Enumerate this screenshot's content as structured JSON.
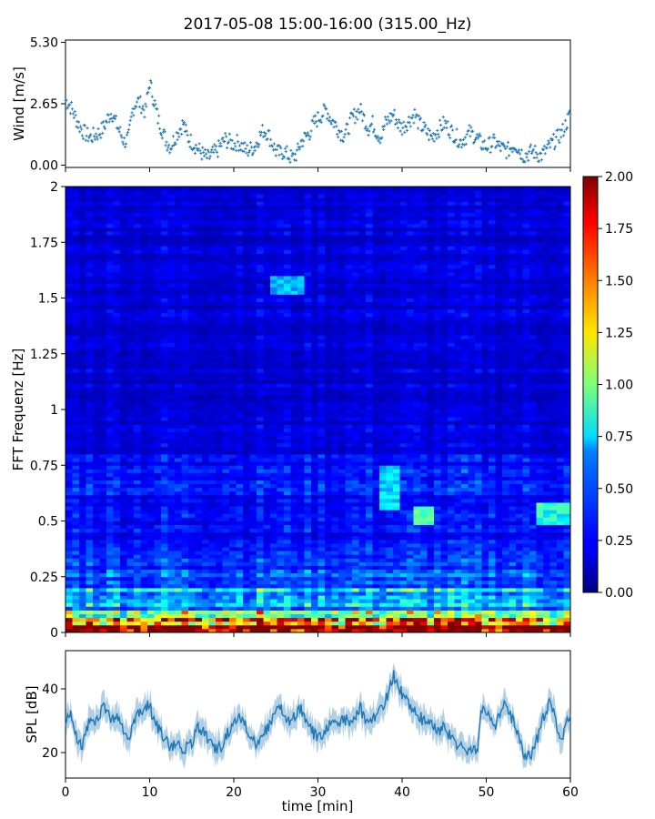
{
  "figure": {
    "title": "2017-05-08 15:00-16:00 (315.00_Hz)"
  },
  "colors": {
    "wind_series": "#1f77b4",
    "spl_series": "#1f77b4",
    "axis": "#000000",
    "background": "#ffffff"
  },
  "chart_data": [
    {
      "type": "scatter",
      "panel": "wind",
      "ylabel": "Wind [m/s]",
      "xlim": [
        0,
        60
      ],
      "ylim": [
        -0.1,
        5.4
      ],
      "yticks": [
        0.0,
        2.65,
        5.3
      ],
      "ytick_labels": [
        "0.00",
        "2.65",
        "5.30"
      ],
      "xticks": [
        0,
        10,
        20,
        30,
        40,
        50,
        60
      ],
      "show_xtick_labels": false,
      "grid": false,
      "marker": "+",
      "x": [
        0,
        0.5,
        1,
        1.5,
        2,
        2.5,
        3,
        3.5,
        4,
        4.5,
        5,
        5.5,
        6,
        6.5,
        7,
        7.5,
        8,
        8.5,
        9,
        9.5,
        10,
        10.5,
        11,
        11.5,
        12,
        12.5,
        13,
        13.5,
        14,
        14.5,
        15,
        15.5,
        16,
        16.5,
        17,
        17.5,
        18,
        18.5,
        19,
        19.5,
        20,
        20.5,
        21,
        21.5,
        22,
        22.5,
        23,
        23.5,
        24,
        24.5,
        25,
        25.5,
        26,
        26.5,
        27,
        27.5,
        28,
        28.5,
        29,
        29.5,
        30,
        30.5,
        31,
        31.5,
        32,
        32.5,
        33,
        33.5,
        34,
        34.5,
        35,
        35.5,
        36,
        36.5,
        37,
        37.5,
        38,
        38.5,
        39,
        39.5,
        40,
        40.5,
        41,
        41.5,
        42,
        42.5,
        43,
        43.5,
        44,
        44.5,
        45,
        45.5,
        46,
        46.5,
        47,
        47.5,
        48,
        48.5,
        49,
        49.5,
        50,
        50.5,
        51,
        51.5,
        52,
        52.5,
        53,
        53.5,
        54,
        54.5,
        55,
        55.5,
        56,
        56.5,
        57,
        57.5,
        58,
        58.5,
        59,
        59.5,
        60
      ],
      "y": [
        2.8,
        2.6,
        2.2,
        1.8,
        1.5,
        1.3,
        1.2,
        1.3,
        1.4,
        1.6,
        2.0,
        2.3,
        1.8,
        1.4,
        1.0,
        1.2,
        2.4,
        2.8,
        2.6,
        2.3,
        3.6,
        2.8,
        2.0,
        1.5,
        1.0,
        0.8,
        1.2,
        1.5,
        1.8,
        1.2,
        1.0,
        0.8,
        0.6,
        0.4,
        0.3,
        0.5,
        0.6,
        0.9,
        1.1,
        1.0,
        0.9,
        1.0,
        0.8,
        0.6,
        0.7,
        0.8,
        1.2,
        1.5,
        1.4,
        1.0,
        0.6,
        0.5,
        0.6,
        0.4,
        0.3,
        0.5,
        1.0,
        1.2,
        1.4,
        1.8,
        2.0,
        2.2,
        2.4,
        2.0,
        1.8,
        1.5,
        1.3,
        1.5,
        2.0,
        2.2,
        2.4,
        2.0,
        1.6,
        1.8,
        1.4,
        1.2,
        1.8,
        2.0,
        2.2,
        1.8,
        1.6,
        1.8,
        2.0,
        2.2,
        1.8,
        1.6,
        1.4,
        1.2,
        1.4,
        1.6,
        1.8,
        1.6,
        1.4,
        1.2,
        1.0,
        1.2,
        1.4,
        1.3,
        1.1,
        0.9,
        0.8,
        0.9,
        1.0,
        0.8,
        0.7,
        0.6,
        0.8,
        0.9,
        0.6,
        0.4,
        0.5,
        0.6,
        0.5,
        0.4,
        0.6,
        0.8,
        1.0,
        1.2,
        1.4,
        1.8,
        2.2
      ]
    },
    {
      "type": "heatmap",
      "panel": "spectrogram",
      "ylabel": "FFT Frequenz [Hz]",
      "xlim": [
        0,
        60
      ],
      "ylim": [
        0,
        2
      ],
      "yticks": [
        0,
        0.25,
        0.5,
        0.75,
        1,
        1.25,
        1.5,
        1.75,
        2
      ],
      "ytick_labels": [
        "0",
        "0.25",
        "0.5",
        "0.75",
        "1",
        "1.25",
        "1.5",
        "1.75",
        "2"
      ],
      "show_xtick_labels": false,
      "colormap": "jet",
      "clim": [
        0,
        2
      ],
      "colorbar_ticks": [
        "0.00",
        "0.25",
        "0.50",
        "0.75",
        "1.00",
        "1.25",
        "1.50",
        "1.75",
        "2.00"
      ],
      "freq_levels": [
        {
          "f_max": 0.03,
          "level": 1.9
        },
        {
          "f_max": 0.06,
          "level": 1.4
        },
        {
          "f_max": 0.1,
          "level": 0.95
        },
        {
          "f_max": 0.2,
          "level": 0.6
        },
        {
          "f_max": 0.4,
          "level": 0.38
        },
        {
          "f_max": 0.8,
          "level": 0.28
        },
        {
          "f_max": 2.0,
          "level": 0.18
        }
      ],
      "hotspots": [
        {
          "t": [
            24,
            28
          ],
          "f": [
            1.52,
            1.6
          ],
          "level": 0.65
        },
        {
          "t": [
            37,
            40
          ],
          "f": [
            0.55,
            0.75
          ],
          "level": 0.7
        },
        {
          "t": [
            41,
            44
          ],
          "f": [
            0.48,
            0.56
          ],
          "level": 0.9
        },
        {
          "t": [
            56,
            60
          ],
          "f": [
            0.48,
            0.58
          ],
          "level": 0.85
        }
      ]
    },
    {
      "type": "line",
      "panel": "spl",
      "ylabel": "SPL [dB]",
      "xlabel": "time [min]",
      "xlim": [
        0,
        60
      ],
      "ylim": [
        12,
        52
      ],
      "yticks": [
        20,
        40
      ],
      "ytick_labels": [
        "20",
        "40"
      ],
      "xticks": [
        0,
        10,
        20,
        30,
        40,
        50,
        60
      ],
      "xtick_labels": [
        "0",
        "10",
        "20",
        "30",
        "40",
        "50",
        "60"
      ],
      "grid": false,
      "x": [
        0,
        0.5,
        1,
        1.5,
        2,
        2.5,
        3,
        3.5,
        4,
        4.5,
        5,
        5.5,
        6,
        6.5,
        7,
        7.5,
        8,
        8.5,
        9,
        9.5,
        10,
        10.5,
        11,
        11.5,
        12,
        12.5,
        13,
        13.5,
        14,
        14.5,
        15,
        15.5,
        16,
        16.5,
        17,
        17.5,
        18,
        18.5,
        19,
        19.5,
        20,
        20.5,
        21,
        21.5,
        22,
        22.5,
        23,
        23.5,
        24,
        24.5,
        25,
        25.5,
        26,
        26.5,
        27,
        27.5,
        28,
        28.5,
        29,
        29.5,
        30,
        30.5,
        31,
        31.5,
        32,
        32.5,
        33,
        33.5,
        34,
        34.5,
        35,
        35.5,
        36,
        36.5,
        37,
        37.5,
        38,
        38.5,
        39,
        39.5,
        40,
        40.5,
        41,
        41.5,
        42,
        42.5,
        43,
        43.5,
        44,
        44.5,
        45,
        45.5,
        46,
        46.5,
        47,
        47.5,
        48,
        48.5,
        49,
        49.5,
        50,
        50.5,
        51,
        51.5,
        52,
        52.5,
        53,
        53.5,
        54,
        54.5,
        55,
        55.5,
        56,
        56.5,
        57,
        57.5,
        58,
        58.5,
        59,
        59.5,
        60
      ],
      "y": [
        30,
        33,
        27,
        24,
        22,
        28,
        30,
        28,
        32,
        34,
        33,
        30,
        32,
        30,
        26,
        23,
        30,
        31,
        33,
        34,
        35,
        30,
        28,
        26,
        24,
        22,
        22,
        24,
        20,
        22,
        23,
        27,
        28,
        26,
        24,
        22,
        21,
        22,
        25,
        27,
        30,
        32,
        31,
        28,
        25,
        23,
        24,
        26,
        28,
        30,
        32,
        34,
        32,
        30,
        30,
        33,
        34,
        31,
        28,
        26,
        24,
        25,
        27,
        29,
        30,
        28,
        31,
        30,
        28,
        32,
        34,
        31,
        28,
        30,
        32,
        34,
        36,
        40,
        44,
        42,
        38,
        36,
        35,
        33,
        32,
        30,
        28,
        30,
        28,
        26,
        28,
        26,
        24,
        23,
        22,
        20,
        20,
        21,
        22,
        34,
        33,
        30,
        28,
        32,
        35,
        34,
        31,
        27,
        24,
        20,
        19,
        20,
        24,
        28,
        33,
        35,
        33,
        28,
        24,
        28,
        32
      ]
    }
  ],
  "axes_labels": {
    "wind_ylabel": "Wind [m/s]",
    "spec_ylabel": "FFT Frequenz [Hz]",
    "spl_ylabel": "SPL [dB]",
    "xlabel": "time [min]"
  }
}
